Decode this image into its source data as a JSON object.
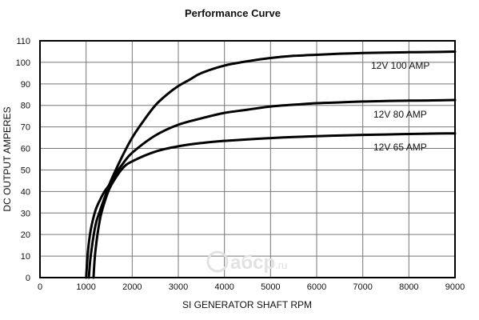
{
  "chart_data": {
    "type": "line",
    "title": "Performance Curve",
    "xlabel": "SI GENERATOR SHAFT RPM",
    "ylabel": "DC OUTPUT AMPERES",
    "xlim": [
      0,
      9000
    ],
    "ylim": [
      0,
      110
    ],
    "xticks": [
      "0",
      "1000",
      "2000",
      "3000",
      "4000",
      "5000",
      "6000",
      "7000",
      "8000",
      "9000"
    ],
    "yticks": [
      "0",
      "10",
      "20",
      "30",
      "40",
      "50",
      "60",
      "70",
      "80",
      "90",
      "100",
      "110"
    ],
    "grid": true,
    "series": [
      {
        "name": "12V 100 AMP",
        "x": [
          1060,
          1100,
          1200,
          1300,
          1400,
          1500,
          1600,
          1800,
          2000,
          2250,
          2500,
          2750,
          3000,
          3250,
          3500,
          4000,
          4500,
          5000,
          5500,
          6000,
          6500,
          7000,
          7500,
          8000,
          8500,
          9000
        ],
        "y": [
          0,
          10,
          24,
          31,
          37,
          43,
          48,
          57,
          65,
          73,
          80,
          85,
          89,
          92,
          95,
          98.5,
          100.5,
          102,
          103,
          103.5,
          104,
          104.3,
          104.5,
          104.7,
          104.8,
          105
        ]
      },
      {
        "name": "12V 80 AMP",
        "x": [
          1000,
          1040,
          1100,
          1200,
          1300,
          1400,
          1500,
          1600,
          1800,
          2000,
          2500,
          3000,
          3500,
          4000,
          4500,
          5000,
          5500,
          6000,
          6500,
          7000,
          7500,
          8000,
          8500,
          9000
        ],
        "y": [
          0,
          12,
          22,
          31,
          36,
          40,
          43,
          47,
          53,
          58,
          66,
          71,
          74,
          76.5,
          78,
          79.5,
          80.3,
          81,
          81.4,
          81.8,
          82,
          82.2,
          82.3,
          82.5
        ]
      },
      {
        "name": "12V 65 AMP",
        "x": [
          1160,
          1200,
          1300,
          1400,
          1500,
          1600,
          1800,
          2000,
          2500,
          3000,
          3500,
          4000,
          4500,
          5000,
          5500,
          6000,
          6500,
          7000,
          7500,
          8000,
          8500,
          9000
        ],
        "y": [
          0,
          12,
          27,
          35,
          41,
          45,
          51,
          54,
          58.5,
          61,
          62.5,
          63.5,
          64.2,
          64.8,
          65.3,
          65.7,
          66,
          66.3,
          66.5,
          66.7,
          66.9,
          67
        ]
      }
    ]
  },
  "watermark": {
    "text": "aбcp",
    "suffix": ".ru",
    "color": "#e2e2e2"
  }
}
